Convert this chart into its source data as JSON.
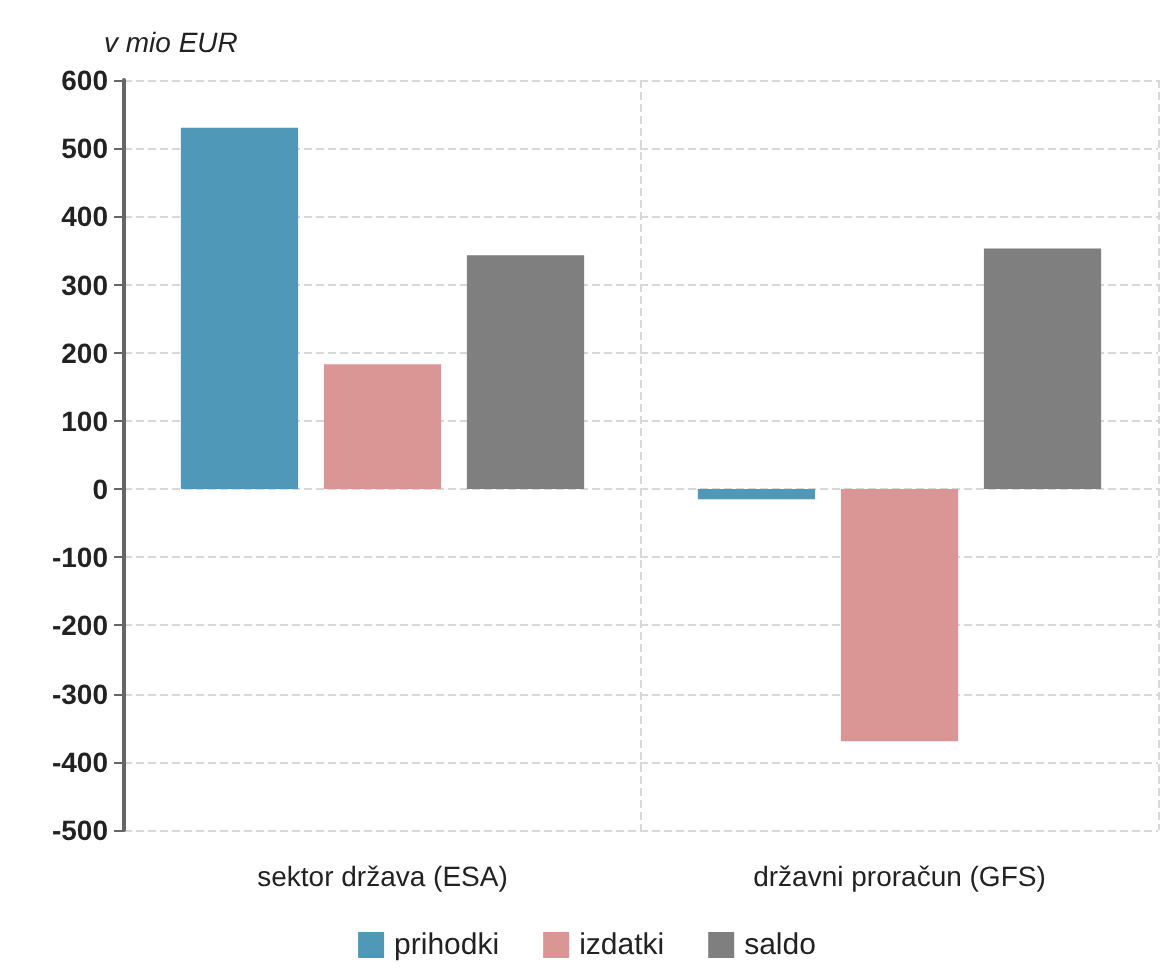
{
  "chart_data": {
    "type": "bar",
    "ylabel": "v mio EUR",
    "categories": [
      "sektor država (ESA)",
      "državni proračun (GFS)"
    ],
    "series": [
      {
        "name": "prihodki",
        "color": "#4f98b8",
        "values": [
          530,
          -15
        ]
      },
      {
        "name": "izdatki",
        "color": "#da9595",
        "values": [
          183,
          -370
        ]
      },
      {
        "name": "saldo",
        "color": "#7f7f7f",
        "values": [
          343,
          353
        ]
      }
    ],
    "ylim": [
      -500,
      600
    ],
    "yticks": [
      -500,
      -400,
      -300,
      -200,
      -100,
      0,
      100,
      200,
      300,
      400,
      500,
      600
    ],
    "grid": true,
    "legend": "bottom"
  }
}
